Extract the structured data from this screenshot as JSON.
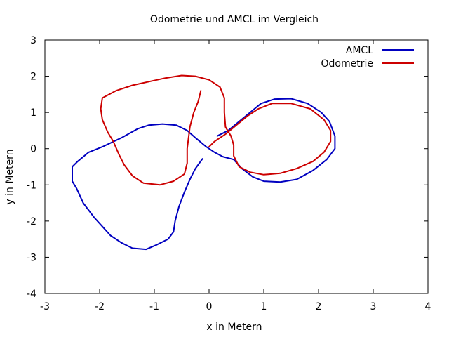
{
  "chart_data": {
    "type": "line",
    "title": "Odometrie und AMCL im Vergleich",
    "xlabel": "x in Metern",
    "ylabel": "y in Metern",
    "xlim": [
      -3,
      4
    ],
    "ylim": [
      -4,
      3
    ],
    "x_ticks": [
      -3,
      -2,
      -1,
      0,
      1,
      2,
      3,
      4
    ],
    "y_ticks": [
      -4,
      -3,
      -2,
      -1,
      0,
      1,
      2,
      3
    ],
    "x_tick_labels": [
      "-3",
      "-2",
      "-1",
      "0",
      "1",
      "2",
      "3",
      "4"
    ],
    "y_tick_labels": [
      "-4",
      "-3",
      "-2",
      "-1",
      "0",
      "1",
      "2",
      "3"
    ],
    "grid": false,
    "legend_position": "top-right",
    "series": [
      {
        "name": "AMCL",
        "color": "#0000c0",
        "points": [
          [
            -0.12,
            -0.28
          ],
          [
            -0.25,
            -0.55
          ],
          [
            -0.35,
            -0.85
          ],
          [
            -0.45,
            -1.2
          ],
          [
            -0.55,
            -1.6
          ],
          [
            -0.62,
            -2.0
          ],
          [
            -0.65,
            -2.3
          ],
          [
            -0.75,
            -2.5
          ],
          [
            -0.95,
            -2.65
          ],
          [
            -1.15,
            -2.78
          ],
          [
            -1.4,
            -2.75
          ],
          [
            -1.6,
            -2.6
          ],
          [
            -1.8,
            -2.4
          ],
          [
            -1.95,
            -2.15
          ],
          [
            -2.1,
            -1.9
          ],
          [
            -2.2,
            -1.7
          ],
          [
            -2.3,
            -1.5
          ],
          [
            -2.42,
            -1.1
          ],
          [
            -2.5,
            -0.9
          ],
          [
            -2.5,
            -0.5
          ],
          [
            -2.4,
            -0.35
          ],
          [
            -2.2,
            -0.1
          ],
          [
            -1.95,
            0.05
          ],
          [
            -1.6,
            0.3
          ],
          [
            -1.3,
            0.55
          ],
          [
            -1.1,
            0.65
          ],
          [
            -0.85,
            0.68
          ],
          [
            -0.6,
            0.65
          ],
          [
            -0.4,
            0.5
          ],
          [
            -0.25,
            0.3
          ],
          [
            -0.05,
            0.05
          ],
          [
            0.1,
            -0.1
          ],
          [
            0.25,
            -0.22
          ],
          [
            0.45,
            -0.3
          ],
          [
            0.6,
            -0.55
          ],
          [
            0.8,
            -0.78
          ],
          [
            1.0,
            -0.9
          ],
          [
            1.3,
            -0.92
          ],
          [
            1.6,
            -0.85
          ],
          [
            1.9,
            -0.6
          ],
          [
            2.15,
            -0.3
          ],
          [
            2.3,
            0.0
          ],
          [
            2.3,
            0.35
          ],
          [
            2.2,
            0.75
          ],
          [
            2.05,
            1.0
          ],
          [
            1.8,
            1.25
          ],
          [
            1.5,
            1.38
          ],
          [
            1.2,
            1.37
          ],
          [
            0.95,
            1.25
          ],
          [
            0.75,
            1.0
          ],
          [
            0.55,
            0.75
          ],
          [
            0.35,
            0.5
          ],
          [
            0.15,
            0.35
          ]
        ]
      },
      {
        "name": "Odometrie",
        "color": "#cc0000",
        "points": [
          [
            -0.15,
            1.6
          ],
          [
            -0.2,
            1.3
          ],
          [
            -0.28,
            1.0
          ],
          [
            -0.35,
            0.6
          ],
          [
            -0.4,
            0.0
          ],
          [
            -0.4,
            -0.4
          ],
          [
            -0.45,
            -0.7
          ],
          [
            -0.65,
            -0.9
          ],
          [
            -0.9,
            -1.0
          ],
          [
            -1.2,
            -0.95
          ],
          [
            -1.4,
            -0.75
          ],
          [
            -1.55,
            -0.45
          ],
          [
            -1.65,
            -0.15
          ],
          [
            -1.75,
            0.2
          ],
          [
            -1.85,
            0.45
          ],
          [
            -1.95,
            0.8
          ],
          [
            -1.98,
            1.1
          ],
          [
            -1.95,
            1.4
          ],
          [
            -1.7,
            1.6
          ],
          [
            -1.4,
            1.75
          ],
          [
            -1.1,
            1.85
          ],
          [
            -0.8,
            1.95
          ],
          [
            -0.5,
            2.02
          ],
          [
            -0.25,
            2.0
          ],
          [
            0.0,
            1.9
          ],
          [
            0.2,
            1.7
          ],
          [
            0.28,
            1.4
          ],
          [
            0.28,
            1.0
          ],
          [
            0.3,
            0.6
          ],
          [
            0.4,
            0.35
          ],
          [
            0.45,
            0.1
          ],
          [
            0.45,
            -0.2
          ],
          [
            0.55,
            -0.5
          ],
          [
            0.75,
            -0.65
          ],
          [
            1.0,
            -0.72
          ],
          [
            1.3,
            -0.68
          ],
          [
            1.6,
            -0.55
          ],
          [
            1.9,
            -0.35
          ],
          [
            2.1,
            -0.1
          ],
          [
            2.22,
            0.2
          ],
          [
            2.22,
            0.5
          ],
          [
            2.1,
            0.8
          ],
          [
            1.85,
            1.1
          ],
          [
            1.5,
            1.25
          ],
          [
            1.15,
            1.25
          ],
          [
            0.9,
            1.1
          ],
          [
            0.7,
            0.9
          ],
          [
            0.5,
            0.65
          ],
          [
            0.3,
            0.4
          ],
          [
            0.1,
            0.2
          ],
          [
            0.0,
            0.05
          ]
        ]
      }
    ]
  }
}
